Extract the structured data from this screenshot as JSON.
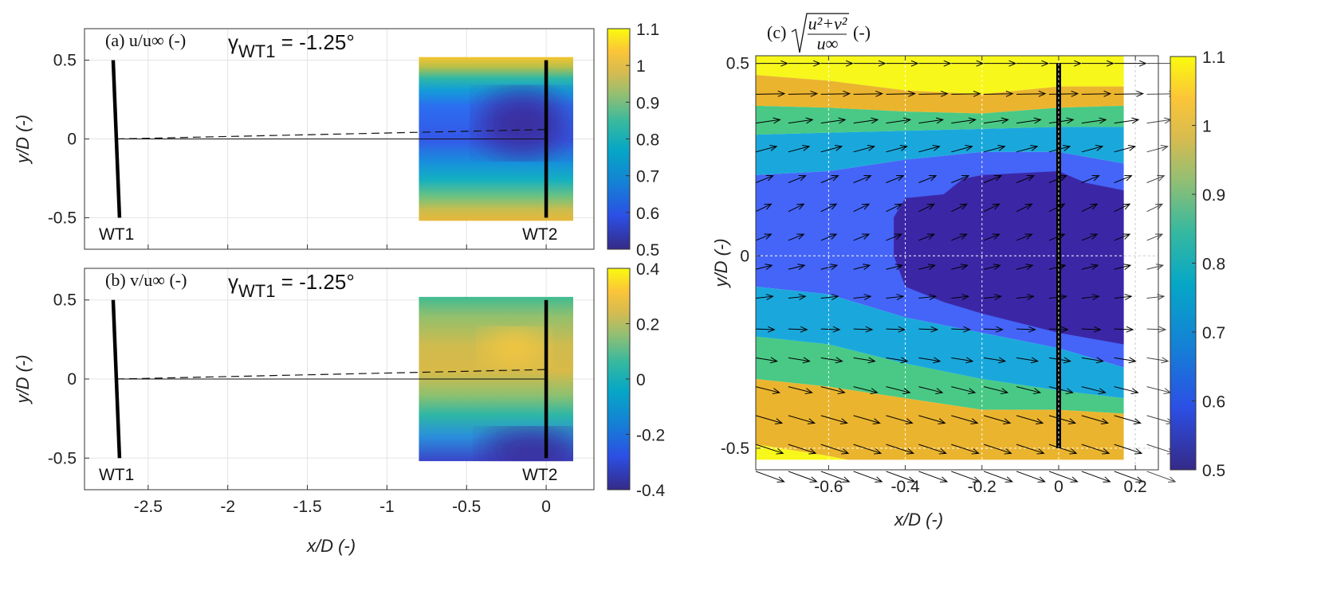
{
  "chart_data": [
    {
      "id": "a",
      "type": "heatmap",
      "title": "(a) u/u∞ (-)",
      "annotation": {
        "symbol": "γ",
        "subscript": "WT1",
        "text": " = -1.25°"
      },
      "ylabel": "y/D (-)",
      "xlim": [
        -2.9,
        0.3
      ],
      "ylim": [
        -0.7,
        0.7
      ],
      "yticks": [
        0.5,
        0,
        -0.5
      ],
      "xticks": [
        -2.5,
        -2,
        -1.5,
        -1,
        -0.5,
        0
      ],
      "show_xticklabels": false,
      "grid": true,
      "field_extent": {
        "x": [
          -0.8,
          0.17
        ],
        "y": [
          -0.52,
          0.52
        ]
      },
      "colorbar": {
        "range": [
          0.5,
          1.1
        ],
        "ticks": [
          1.1,
          1,
          0.9,
          0.8,
          0.7,
          0.6,
          0.5
        ]
      },
      "turbines": [
        {
          "label": "WT1",
          "x": [
            -2.72,
            -2.68
          ],
          "y": [
            0.5,
            -0.5
          ]
        },
        {
          "label": "WT2",
          "x": [
            0,
            0
          ],
          "y": [
            0.5,
            -0.5
          ]
        }
      ],
      "centerline": {
        "x": [
          -2.7,
          0
        ],
        "y": [
          0,
          0
        ]
      },
      "wake_line": {
        "x": [
          -2.7,
          0
        ],
        "y": [
          0,
          0.06
        ],
        "style": "dashed"
      }
    },
    {
      "id": "b",
      "type": "heatmap",
      "title": "(b) v/u∞ (-)",
      "annotation": {
        "symbol": "γ",
        "subscript": "WT1",
        "text": " = -1.25°"
      },
      "ylabel": "y/D (-)",
      "xlabel": "x/D (-)",
      "xlim": [
        -2.9,
        0.3
      ],
      "ylim": [
        -0.7,
        0.7
      ],
      "yticks": [
        0.5,
        0,
        -0.5
      ],
      "xticks": [
        -2.5,
        -2,
        -1.5,
        -1,
        -0.5,
        0
      ],
      "xticklabels": [
        "-2.5",
        "-2",
        "-1.5",
        "-1",
        "-0.5",
        "0"
      ],
      "show_xticklabels": true,
      "grid": true,
      "field_extent": {
        "x": [
          -0.8,
          0.17
        ],
        "y": [
          -0.52,
          0.52
        ]
      },
      "colorbar": {
        "range": [
          -0.4,
          0.4
        ],
        "ticks": [
          0.4,
          0.2,
          0,
          -0.2,
          -0.4
        ]
      },
      "turbines": [
        {
          "label": "WT1",
          "x": [
            -2.72,
            -2.68
          ],
          "y": [
            0.5,
            -0.5
          ]
        },
        {
          "label": "WT2",
          "x": [
            0,
            0
          ],
          "y": [
            0.5,
            -0.5
          ]
        }
      ],
      "centerline": {
        "x": [
          -2.7,
          0
        ],
        "y": [
          0,
          0
        ]
      },
      "wake_line": {
        "x": [
          -2.7,
          0
        ],
        "y": [
          0,
          0.06
        ],
        "style": "dashed"
      }
    },
    {
      "id": "c",
      "type": "contour+quiver",
      "title": "(c) √((u²+v²)/u∞) (-)",
      "title_parts": {
        "prefix": "(c)",
        "numerator": "u²+v²",
        "denominator": "u∞",
        "suffix": "(-)"
      },
      "xlabel": "x/D (-)",
      "ylabel": "y/D (-)",
      "xlim": [
        -0.79,
        0.26
      ],
      "ylim": [
        -0.556,
        0.52
      ],
      "xticks": [
        -0.6,
        -0.4,
        -0.2,
        0,
        0.2
      ],
      "yticks": [
        0.5,
        0,
        -0.5
      ],
      "grid": true,
      "colorbar": {
        "range": [
          0.5,
          1.1
        ],
        "ticks": [
          1.1,
          1,
          0.9,
          0.8,
          0.7,
          0.6,
          0.5
        ]
      },
      "field_extent": {
        "x": [
          -0.79,
          0.17
        ],
        "y": [
          -0.53,
          0.52
        ]
      },
      "contour_x": [
        -0.79,
        -0.6,
        -0.4,
        -0.2,
        0,
        0.17
      ],
      "contour_boundaries": [
        {
          "above": 1.1,
          "below": 1.0,
          "y": [
            0.47,
            0.455,
            0.43,
            0.42,
            0.44,
            0.44
          ]
        },
        {
          "above": 1.0,
          "below": 0.8,
          "y": [
            0.39,
            0.385,
            0.375,
            0.37,
            0.385,
            0.39
          ]
        },
        {
          "above": 0.8,
          "below": 0.7,
          "y": [
            0.315,
            0.32,
            0.325,
            0.33,
            0.335,
            0.335
          ]
        },
        {
          "above": 0.7,
          "below": 0.6,
          "y": [
            0.21,
            0.22,
            0.25,
            0.27,
            0.27,
            0.24
          ]
        },
        {
          "above": 0.6,
          "below": 0.7,
          "y": [
            -0.08,
            -0.1,
            -0.16,
            -0.2,
            -0.24,
            -0.29
          ]
        },
        {
          "above": 0.7,
          "below": 0.8,
          "y": [
            -0.21,
            -0.23,
            -0.28,
            -0.32,
            -0.35,
            -0.37
          ]
        },
        {
          "above": 0.8,
          "below": 1.0,
          "y": [
            -0.32,
            -0.34,
            -0.37,
            -0.4,
            -0.4,
            -0.41
          ]
        },
        {
          "above": 1.0,
          "below": 1.1,
          "y": [
            -0.49,
            -0.52,
            -0.56,
            -0.56,
            -0.56,
            -0.56
          ]
        }
      ],
      "band_colors": {
        "1.1": "#f7f71b",
        "1.0": "#ebb42e",
        "0.8": "#49c985",
        "0.7": "#1aa8dc",
        "0.6": "#4465f7",
        "0.5": "#3b27a6"
      },
      "low_region": {
        "level": 0.5,
        "points": [
          [
            -0.43,
            0.1
          ],
          [
            -0.4,
            0.15
          ],
          [
            -0.3,
            0.16
          ],
          [
            -0.25,
            0.2
          ],
          [
            -0.2,
            0.21
          ],
          [
            0,
            0.22
          ],
          [
            0.07,
            0.19
          ],
          [
            0.17,
            0.17
          ],
          [
            0.17,
            -0.23
          ],
          [
            0,
            -0.2
          ],
          [
            -0.2,
            -0.15
          ],
          [
            -0.3,
            -0.12
          ],
          [
            -0.4,
            -0.08
          ],
          [
            -0.43,
            0
          ]
        ]
      },
      "quiver": {
        "x_start": -0.79,
        "x_step": 0.085,
        "x_end": 0.25,
        "rows": [
          {
            "y": 0.5,
            "angle_deg": 0,
            "mag": 1.1
          },
          {
            "y": 0.42,
            "angle_deg": 1,
            "mag": 1.0
          },
          {
            "y": 0.345,
            "angle_deg": 8,
            "mag": 0.85
          },
          {
            "y": 0.27,
            "angle_deg": 15,
            "mag": 0.75
          },
          {
            "y": 0.19,
            "angle_deg": 22,
            "mag": 0.65
          },
          {
            "y": 0.115,
            "angle_deg": 26,
            "mag": 0.6
          },
          {
            "y": 0.04,
            "angle_deg": 22,
            "mag": 0.58
          },
          {
            "y": -0.035,
            "angle_deg": 14,
            "mag": 0.58
          },
          {
            "y": -0.11,
            "angle_deg": 6,
            "mag": 0.6
          },
          {
            "y": -0.19,
            "angle_deg": -2,
            "mag": 0.65
          },
          {
            "y": -0.265,
            "angle_deg": -9,
            "mag": 0.75
          },
          {
            "y": -0.34,
            "angle_deg": -14,
            "mag": 0.85
          },
          {
            "y": -0.415,
            "angle_deg": -16,
            "mag": 0.95
          },
          {
            "y": -0.49,
            "angle_deg": -18,
            "mag": 1.0
          },
          {
            "y": -0.56,
            "angle_deg": -20,
            "mag": 1.05
          }
        ]
      },
      "turbine": {
        "x": [
          0,
          0
        ],
        "y": [
          0.5,
          -0.5
        ]
      }
    }
  ]
}
